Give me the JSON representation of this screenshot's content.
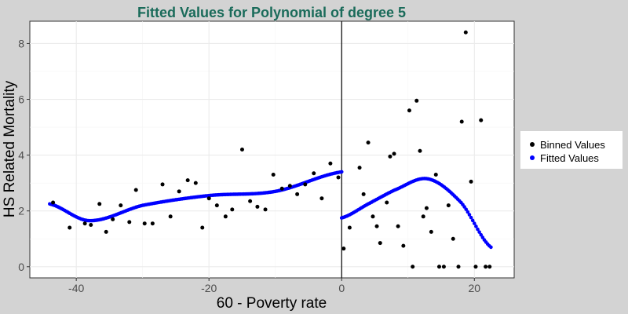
{
  "colors": {
    "background": "#d3d3d3",
    "panel": "#ffffff",
    "grid": "#ebebeb",
    "title": "#1a6b5a",
    "binned": "#000000",
    "fitted": "#0000ff"
  },
  "chart_data": {
    "type": "scatter",
    "title": "Fitted Values for Polynomial of degree 5",
    "xlabel": "60 - Poverty rate",
    "ylabel": "HS Related Mortality",
    "xlim": [
      -47,
      26
    ],
    "ylim": [
      -0.4,
      8.8
    ],
    "x_ticks": [
      -40,
      -20,
      0,
      20
    ],
    "y_ticks": [
      0,
      2,
      4,
      6,
      8
    ],
    "cutoff_x": 0,
    "grid": true,
    "legend_position": "right",
    "series": [
      {
        "name": "Binned Values",
        "type": "points",
        "points": [
          [
            -43.5,
            2.3
          ],
          [
            -41,
            1.4
          ],
          [
            -38.7,
            1.55
          ],
          [
            -37.8,
            1.5
          ],
          [
            -36.5,
            2.25
          ],
          [
            -35.5,
            1.25
          ],
          [
            -34.5,
            1.7
          ],
          [
            -33.3,
            2.2
          ],
          [
            -32,
            1.6
          ],
          [
            -31,
            2.75
          ],
          [
            -29.7,
            1.55
          ],
          [
            -28.5,
            1.55
          ],
          [
            -27,
            2.95
          ],
          [
            -25.8,
            1.8
          ],
          [
            -24.5,
            2.7
          ],
          [
            -23.2,
            3.1
          ],
          [
            -22,
            3.0
          ],
          [
            -21,
            1.4
          ],
          [
            -20,
            2.45
          ],
          [
            -18.8,
            2.2
          ],
          [
            -17.5,
            1.8
          ],
          [
            -16.5,
            2.05
          ],
          [
            -15,
            4.2
          ],
          [
            -13.8,
            2.35
          ],
          [
            -12.7,
            2.15
          ],
          [
            -11.5,
            2.05
          ],
          [
            -10.3,
            3.3
          ],
          [
            -9,
            2.8
          ],
          [
            -7.8,
            2.9
          ],
          [
            -6.7,
            2.6
          ],
          [
            -5.5,
            2.95
          ],
          [
            -4.2,
            3.35
          ],
          [
            -3,
            2.45
          ],
          [
            -1.7,
            3.7
          ],
          [
            -0.5,
            3.2
          ],
          [
            0.3,
            0.65
          ],
          [
            1.2,
            1.4
          ],
          [
            2.7,
            3.55
          ],
          [
            3.3,
            2.6
          ],
          [
            4,
            4.45
          ],
          [
            4.7,
            1.8
          ],
          [
            5.3,
            1.45
          ],
          [
            5.8,
            0.85
          ],
          [
            6.8,
            2.3
          ],
          [
            7.3,
            3.95
          ],
          [
            7.9,
            4.05
          ],
          [
            8.5,
            1.45
          ],
          [
            9.3,
            0.75
          ],
          [
            10.2,
            5.6
          ],
          [
            10.7,
            0.0
          ],
          [
            11.3,
            5.95
          ],
          [
            11.8,
            4.15
          ],
          [
            12.3,
            1.8
          ],
          [
            12.8,
            2.1
          ],
          [
            13.5,
            1.25
          ],
          [
            14.2,
            3.3
          ],
          [
            14.7,
            0.0
          ],
          [
            15.4,
            0.0
          ],
          [
            16.1,
            2.2
          ],
          [
            16.8,
            1.0
          ],
          [
            17.6,
            0.0
          ],
          [
            18.1,
            5.2
          ],
          [
            18.7,
            8.4
          ],
          [
            19.5,
            3.05
          ],
          [
            20.2,
            0.0
          ],
          [
            21,
            5.25
          ],
          [
            21.7,
            0.0
          ],
          [
            22.3,
            0.0
          ]
        ]
      },
      {
        "name": "Fitted Values",
        "type": "polynomial",
        "segments": [
          {
            "x_range": [
              -44,
              0
            ],
            "knots": [
              [
                -44,
                2.25
              ],
              [
                -38,
                1.65
              ],
              [
                -30,
                2.2
              ],
              [
                -20,
                2.55
              ],
              [
                -10,
                2.7
              ],
              [
                0,
                3.4
              ]
            ]
          },
          {
            "x_range": [
              0,
              22.5
            ],
            "knots": [
              [
                0,
                1.75
              ],
              [
                4,
                2.25
              ],
              [
                8,
                2.75
              ],
              [
                13,
                3.15
              ],
              [
                18,
                2.3
              ],
              [
                22.5,
                0.7
              ]
            ]
          }
        ]
      }
    ]
  }
}
